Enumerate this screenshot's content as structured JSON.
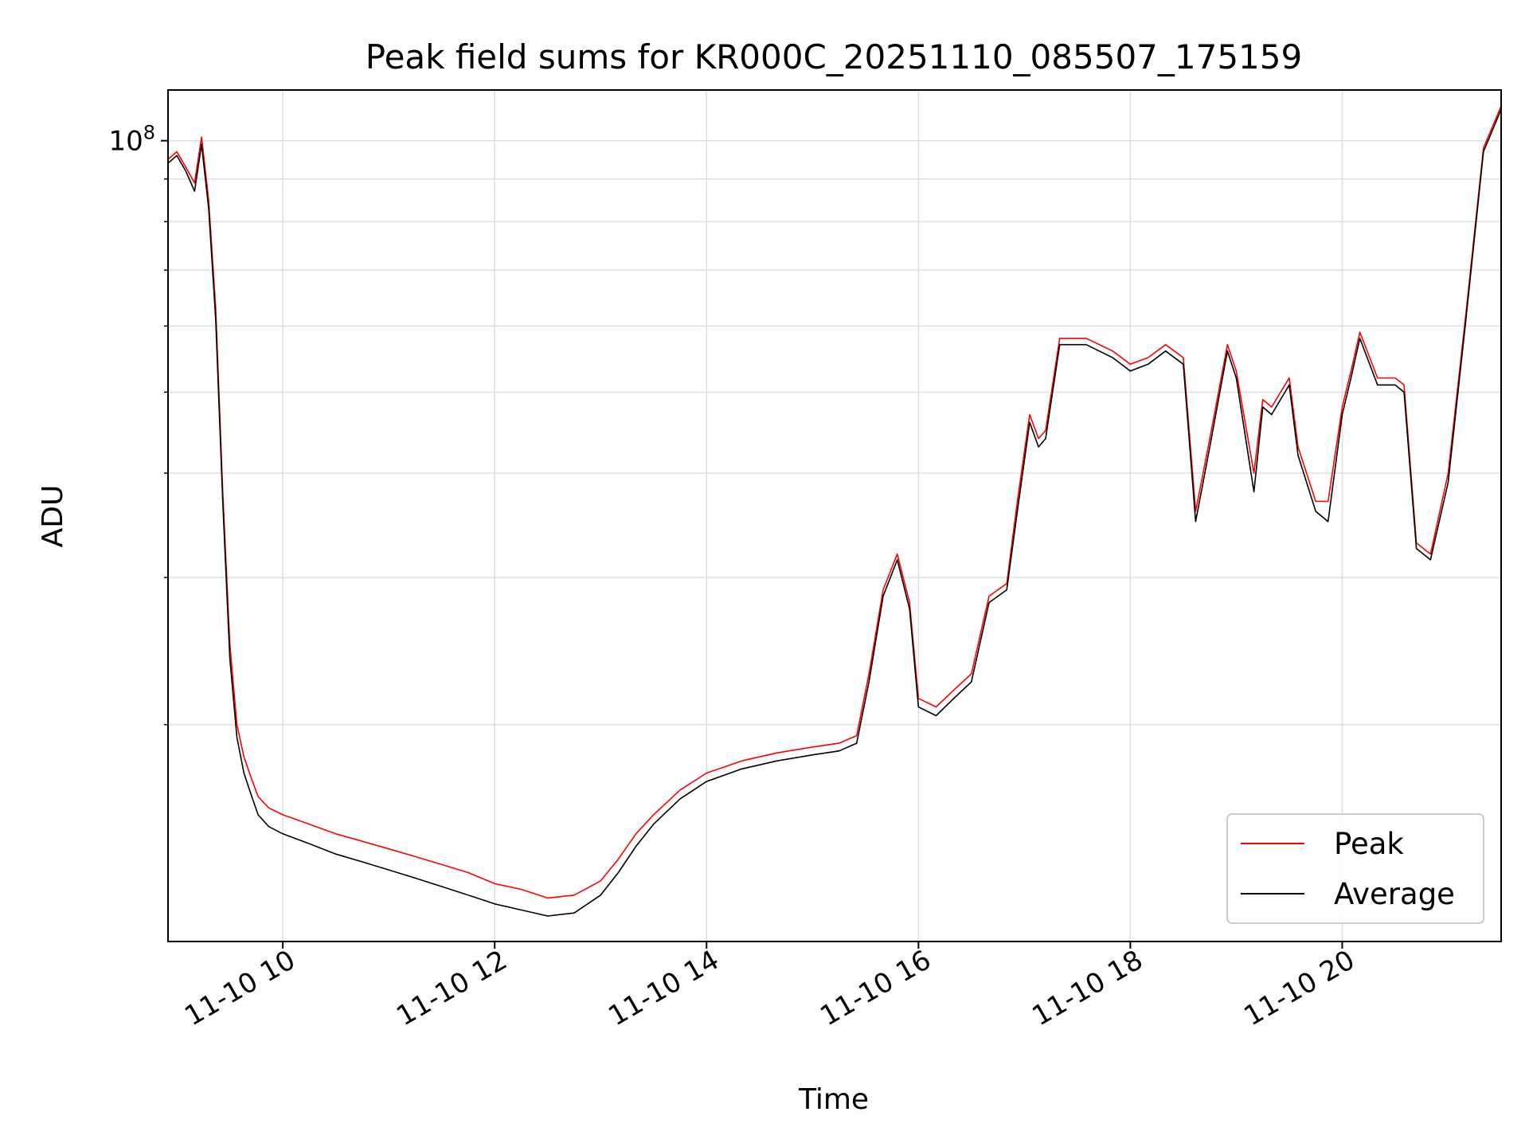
{
  "chart_data": {
    "type": "line",
    "title": "Peak field sums for KR000C_20251110_085507_175159",
    "xlabel": "Time",
    "ylabel": "ADU",
    "x_axis_type": "time",
    "y_scale": "log",
    "xlim": [
      "2025-11-10 08:55",
      "2025-11-10 21:30"
    ],
    "ylim": [
      11000000,
      115000000
    ],
    "y_major_tick": {
      "value": 100000000,
      "label_base": "10",
      "label_exp": "8"
    },
    "y_minor_ticks": [
      20000000,
      30000000,
      40000000,
      50000000,
      60000000,
      70000000,
      80000000,
      90000000
    ],
    "x_ticks": [
      {
        "t": "2025-11-10 10:00",
        "label": "11-10 10"
      },
      {
        "t": "2025-11-10 12:00",
        "label": "11-10 12"
      },
      {
        "t": "2025-11-10 14:00",
        "label": "11-10 14"
      },
      {
        "t": "2025-11-10 16:00",
        "label": "11-10 16"
      },
      {
        "t": "2025-11-10 18:00",
        "label": "11-10 18"
      },
      {
        "t": "2025-11-10 20:00",
        "label": "11-10 20"
      }
    ],
    "grid": true,
    "legend_position": "lower-right",
    "series": [
      {
        "name": "Peak",
        "color": "#ff0000",
        "x": [
          "2025-11-10 08:55",
          "2025-11-10 09:00",
          "2025-11-10 09:05",
          "2025-11-10 09:10",
          "2025-11-10 09:14",
          "2025-11-10 09:18",
          "2025-11-10 09:22",
          "2025-11-10 09:26",
          "2025-11-10 09:30",
          "2025-11-10 09:34",
          "2025-11-10 09:38",
          "2025-11-10 09:42",
          "2025-11-10 09:46",
          "2025-11-10 09:52",
          "2025-11-10 10:00",
          "2025-11-10 10:15",
          "2025-11-10 10:30",
          "2025-11-10 10:45",
          "2025-11-10 11:00",
          "2025-11-10 11:15",
          "2025-11-10 11:30",
          "2025-11-10 11:45",
          "2025-11-10 12:00",
          "2025-11-10 12:15",
          "2025-11-10 12:30",
          "2025-11-10 12:45",
          "2025-11-10 13:00",
          "2025-11-10 13:10",
          "2025-11-10 13:20",
          "2025-11-10 13:30",
          "2025-11-10 13:45",
          "2025-11-10 14:00",
          "2025-11-10 14:20",
          "2025-11-10 14:40",
          "2025-11-10 15:00",
          "2025-11-10 15:15",
          "2025-11-10 15:25",
          "2025-11-10 15:32",
          "2025-11-10 15:40",
          "2025-11-10 15:48",
          "2025-11-10 15:55",
          "2025-11-10 16:00",
          "2025-11-10 16:10",
          "2025-11-10 16:20",
          "2025-11-10 16:30",
          "2025-11-10 16:40",
          "2025-11-10 16:50",
          "2025-11-10 16:56",
          "2025-11-10 17:03",
          "2025-11-10 17:08",
          "2025-11-10 17:12",
          "2025-11-10 17:20",
          "2025-11-10 17:35",
          "2025-11-10 17:50",
          "2025-11-10 18:00",
          "2025-11-10 18:10",
          "2025-11-10 18:20",
          "2025-11-10 18:30",
          "2025-11-10 18:37",
          "2025-11-10 18:45",
          "2025-11-10 18:55",
          "2025-11-10 19:00",
          "2025-11-10 19:10",
          "2025-11-10 19:15",
          "2025-11-10 19:20",
          "2025-11-10 19:30",
          "2025-11-10 19:35",
          "2025-11-10 19:45",
          "2025-11-10 19:52",
          "2025-11-10 20:00",
          "2025-11-10 20:05",
          "2025-11-10 20:10",
          "2025-11-10 20:20",
          "2025-11-10 20:30",
          "2025-11-10 20:35",
          "2025-11-10 20:42",
          "2025-11-10 20:50",
          "2025-11-10 21:00",
          "2025-11-10 21:10",
          "2025-11-10 21:20",
          "2025-11-10 21:30"
        ],
        "values": [
          95000000,
          97000000,
          93000000,
          89000000,
          101000000,
          85000000,
          63000000,
          38000000,
          25000000,
          20000000,
          18300000,
          17300000,
          16400000,
          15900000,
          15600000,
          15200000,
          14800000,
          14500000,
          14200000,
          13900000,
          13600000,
          13300000,
          12900000,
          12700000,
          12400000,
          12500000,
          13000000,
          13800000,
          14800000,
          15600000,
          16700000,
          17500000,
          18100000,
          18500000,
          18800000,
          19000000,
          19400000,
          23000000,
          29000000,
          32000000,
          28000000,
          21500000,
          21000000,
          22000000,
          23000000,
          28500000,
          29500000,
          37000000,
          47000000,
          44000000,
          45000000,
          58000000,
          58000000,
          56000000,
          54000000,
          55000000,
          57000000,
          55000000,
          36000000,
          44000000,
          57000000,
          53000000,
          40000000,
          49000000,
          48000000,
          52000000,
          43000000,
          37000000,
          37000000,
          48000000,
          53000000,
          59000000,
          52000000,
          52000000,
          51000000,
          33000000,
          32000000,
          40000000,
          62000000,
          98000000,
          110000000
        ]
      },
      {
        "name": "Average",
        "color": "#000000",
        "x": [
          "2025-11-10 08:55",
          "2025-11-10 09:00",
          "2025-11-10 09:05",
          "2025-11-10 09:10",
          "2025-11-10 09:14",
          "2025-11-10 09:18",
          "2025-11-10 09:22",
          "2025-11-10 09:26",
          "2025-11-10 09:30",
          "2025-11-10 09:34",
          "2025-11-10 09:38",
          "2025-11-10 09:42",
          "2025-11-10 09:46",
          "2025-11-10 09:52",
          "2025-11-10 10:00",
          "2025-11-10 10:15",
          "2025-11-10 10:30",
          "2025-11-10 10:45",
          "2025-11-10 11:00",
          "2025-11-10 11:15",
          "2025-11-10 11:30",
          "2025-11-10 11:45",
          "2025-11-10 12:00",
          "2025-11-10 12:15",
          "2025-11-10 12:30",
          "2025-11-10 12:45",
          "2025-11-10 13:00",
          "2025-11-10 13:10",
          "2025-11-10 13:20",
          "2025-11-10 13:30",
          "2025-11-10 13:45",
          "2025-11-10 14:00",
          "2025-11-10 14:20",
          "2025-11-10 14:40",
          "2025-11-10 15:00",
          "2025-11-10 15:15",
          "2025-11-10 15:25",
          "2025-11-10 15:32",
          "2025-11-10 15:40",
          "2025-11-10 15:48",
          "2025-11-10 15:55",
          "2025-11-10 16:00",
          "2025-11-10 16:10",
          "2025-11-10 16:20",
          "2025-11-10 16:30",
          "2025-11-10 16:40",
          "2025-11-10 16:50",
          "2025-11-10 16:56",
          "2025-11-10 17:03",
          "2025-11-10 17:08",
          "2025-11-10 17:12",
          "2025-11-10 17:20",
          "2025-11-10 17:35",
          "2025-11-10 17:50",
          "2025-11-10 18:00",
          "2025-11-10 18:10",
          "2025-11-10 18:20",
          "2025-11-10 18:30",
          "2025-11-10 18:37",
          "2025-11-10 18:45",
          "2025-11-10 18:55",
          "2025-11-10 19:00",
          "2025-11-10 19:10",
          "2025-11-10 19:15",
          "2025-11-10 19:20",
          "2025-11-10 19:30",
          "2025-11-10 19:35",
          "2025-11-10 19:45",
          "2025-11-10 19:52",
          "2025-11-10 20:00",
          "2025-11-10 20:05",
          "2025-11-10 20:10",
          "2025-11-10 20:20",
          "2025-11-10 20:30",
          "2025-11-10 20:35",
          "2025-11-10 20:42",
          "2025-11-10 20:50",
          "2025-11-10 21:00",
          "2025-11-10 21:10",
          "2025-11-10 21:20",
          "2025-11-10 21:30"
        ],
        "values": [
          94000000,
          96000000,
          92000000,
          87000000,
          99000000,
          83000000,
          61000000,
          37000000,
          24000000,
          19300000,
          17500000,
          16500000,
          15600000,
          15100000,
          14800000,
          14400000,
          14000000,
          13700000,
          13400000,
          13100000,
          12800000,
          12500000,
          12200000,
          12000000,
          11800000,
          11900000,
          12500000,
          13300000,
          14300000,
          15200000,
          16300000,
          17100000,
          17700000,
          18100000,
          18400000,
          18600000,
          19000000,
          22500000,
          28500000,
          31500000,
          27500000,
          21000000,
          20500000,
          21500000,
          22500000,
          28000000,
          29000000,
          36000000,
          46000000,
          43000000,
          44000000,
          57000000,
          57000000,
          55000000,
          53000000,
          54000000,
          56000000,
          54000000,
          35000000,
          43000000,
          56000000,
          52000000,
          38000000,
          48000000,
          47000000,
          51000000,
          42000000,
          36000000,
          35000000,
          47000000,
          52000000,
          58000000,
          51000000,
          51000000,
          50000000,
          32500000,
          31500000,
          39000000,
          61000000,
          97000000,
          109000000
        ]
      }
    ]
  }
}
